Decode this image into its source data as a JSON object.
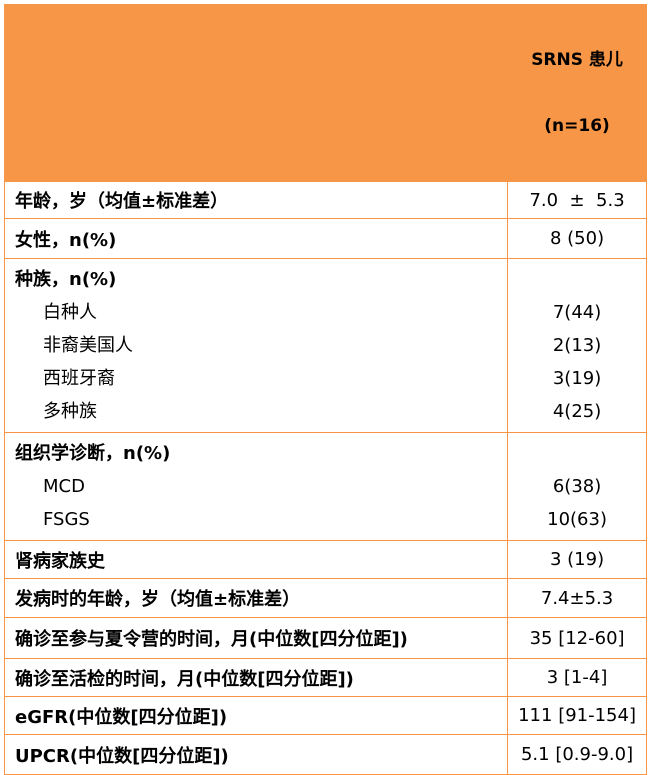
{
  "header": {
    "title": "SRNS 患儿",
    "subtitle": "(n=16)"
  },
  "table": {
    "rows": [
      {
        "label": "年龄，岁（均值±标准差）",
        "value": "7.0  ±  5.3"
      },
      {
        "label": "女性，n(%)",
        "value": "8 (50)"
      },
      {
        "label": "种族，n(%)",
        "items": [
          {
            "label": "白种人",
            "value": "7(44)"
          },
          {
            "label": "非裔美国人",
            "value": "2(13)"
          },
          {
            "label": "西班牙裔",
            "value": "3(19)"
          },
          {
            "label": "多种族",
            "value": "4(25)"
          }
        ]
      },
      {
        "label": "组织学诊断，n(%)",
        "items": [
          {
            "label": "MCD",
            "value": "6(38)"
          },
          {
            "label": "FSGS",
            "value": "10(63)"
          }
        ]
      },
      {
        "label": "肾病家族史",
        "value": "3 (19)"
      },
      {
        "label": "发病时的年龄，岁（均值±标准差）",
        "value": "7.4±5.3"
      },
      {
        "label": "确诊至参与夏令营的时间，月(中位数[四分位距])",
        "value": "35 [12-60]"
      },
      {
        "label": "确诊至活检的时间，月(中位数[四分位距])",
        "value": "3 [1-4]"
      },
      {
        "label": "eGFR(中位数[四分位距])",
        "value": "111 [91-154]"
      },
      {
        "label": "UPCR(中位数[四分位距])",
        "value": "5.1 [0.9-9.0]"
      }
    ]
  }
}
